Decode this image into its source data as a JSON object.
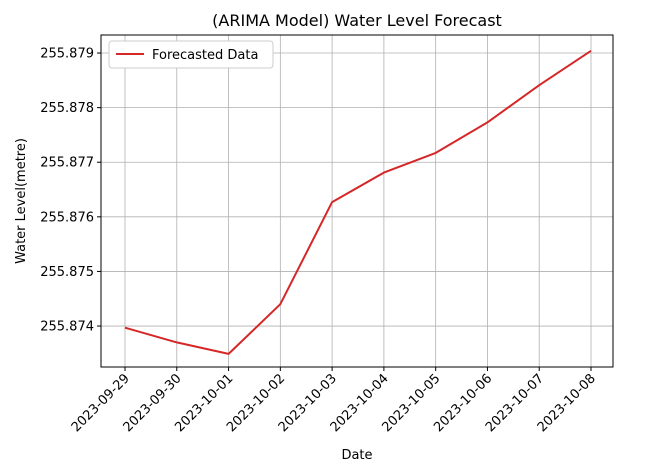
{
  "chart_data": {
    "type": "line",
    "title": "(ARIMA Model) Water Level Forecast",
    "xlabel": "Date",
    "ylabel": "Water Level(metre)",
    "x": [
      "2023-09-29",
      "2023-09-30",
      "2023-10-01",
      "2023-10-02",
      "2023-10-03",
      "2023-10-04",
      "2023-10-05",
      "2023-10-06",
      "2023-10-07",
      "2023-10-08"
    ],
    "series": [
      {
        "name": "Forecasted Data",
        "color": "#d62728",
        "values": [
          255.87397,
          255.8737,
          255.87349,
          255.8744,
          255.87627,
          255.87681,
          255.87717,
          255.87773,
          255.87841,
          255.87904
        ]
      }
    ],
    "yticks": [
      "255.874",
      "255.875",
      "255.876",
      "255.877",
      "255.878",
      "255.879"
    ],
    "ylim": [
      255.87325,
      255.87933
    ],
    "grid": true,
    "legend": "top-left"
  }
}
